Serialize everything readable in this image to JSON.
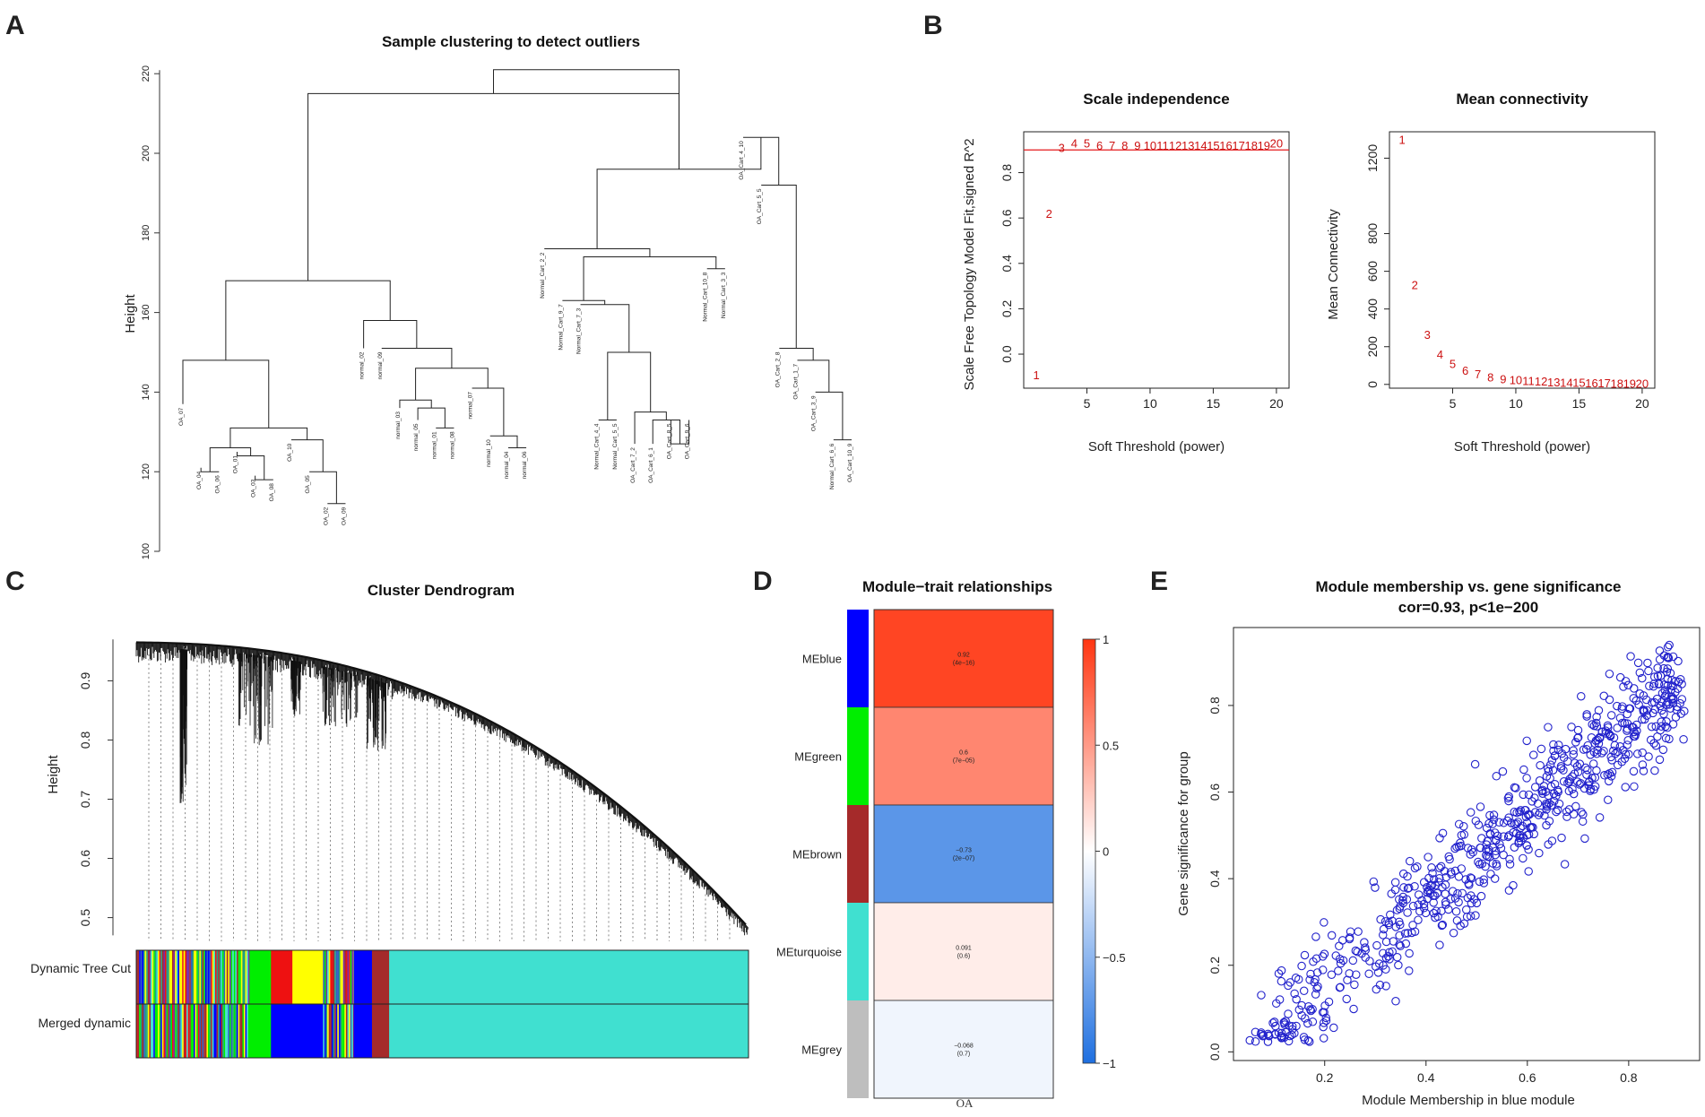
{
  "panels": {
    "A": "A",
    "B": "B",
    "C": "C",
    "D": "D",
    "E": "E"
  },
  "colors": {
    "blue": "#0000ff",
    "green": "#00ee00",
    "brown": "#a52a2a",
    "turquoise": "#40e0d0",
    "grey": "#bebebe",
    "yellow": "#ffff00",
    "red": "#ee1111",
    "purple": "#7b2aa8",
    "threshold": "#e41a1c",
    "points": "#2222cc"
  },
  "chart_data": [
    {
      "id": "A",
      "type": "dendrogram",
      "title": "Sample clustering to detect outliers",
      "ylabel": "Height",
      "ylim": [
        100,
        225
      ],
      "yticks": [
        100,
        120,
        140,
        160,
        180,
        200,
        220
      ],
      "leaves": [
        "OA_07",
        "OA_04",
        "OA_06",
        "OA_01",
        "OA_03",
        "OA_08",
        "OA_10",
        "OA_05",
        "OA_02",
        "OA_09",
        "normal_02",
        "normal_09",
        "normal_03",
        "normal_05",
        "normal_01",
        "normal_08",
        "normal_07",
        "normal_10",
        "normal_04",
        "normal_06",
        "Normal_Cart_2_2",
        "Normal_Cart_9_7",
        "Normal_Cart_7_3",
        "Normal_Cart_4_4",
        "Normal_Cart_5_5",
        "OA_Cart_7_2",
        "OA_Cart_6_1",
        "OA_Cart_8_5",
        "OA_Cart_9_6",
        "Normal_Cart_10_8",
        "Normal_Cart_3_3",
        "OA_Cart_4_10",
        "OA_Cart_5_5",
        "OA_Cart_2_8",
        "OA_Cart_1_7",
        "OA_Cart_3_9",
        "Normal_Cart_6_6",
        "OA_Cart_10_9"
      ],
      "merges": [
        [
          -2,
          -3,
          120
        ],
        [
          -5,
          -6,
          118
        ],
        [
          -4,
          2,
          124
        ],
        [
          1,
          3,
          126
        ],
        [
          -9,
          -10,
          112
        ],
        [
          -8,
          5,
          120
        ],
        [
          -7,
          6,
          128
        ],
        [
          4,
          7,
          131
        ],
        [
          -1,
          8,
          148
        ],
        [
          -15,
          -16,
          131
        ],
        [
          -14,
          10,
          136
        ],
        [
          -13,
          11,
          138
        ],
        [
          -19,
          -20,
          126
        ],
        [
          -18,
          13,
          129
        ],
        [
          -17,
          14,
          141
        ],
        [
          12,
          15,
          146
        ],
        [
          -12,
          16,
          151
        ],
        [
          -11,
          17,
          158
        ],
        [
          9,
          18,
          168
        ],
        [
          -24,
          -25,
          133
        ],
        [
          -28,
          -29,
          127
        ],
        [
          -27,
          21,
          133
        ],
        [
          -26,
          22,
          135
        ],
        [
          20,
          23,
          150
        ],
        [
          -23,
          24,
          162
        ],
        [
          -22,
          25,
          163
        ],
        [
          -30,
          -31,
          171
        ],
        [
          26,
          27,
          174
        ],
        [
          -21,
          28,
          176
        ],
        [
          -37,
          -38,
          128
        ],
        [
          -36,
          30,
          140
        ],
        [
          -35,
          31,
          148
        ],
        [
          -34,
          32,
          151
        ],
        [
          -33,
          33,
          192
        ],
        [
          -32,
          34,
          204
        ],
        [
          29,
          35,
          196
        ],
        [
          19,
          36,
          215
        ],
        [
          37,
          36,
          221
        ]
      ]
    },
    {
      "id": "B1",
      "type": "scatter",
      "title": "Scale independence",
      "xlabel": "Soft Threshold (power)",
      "ylabel": "Scale Free Topology Model Fit,signed R^2",
      "xlim": [
        0,
        21
      ],
      "ylim": [
        -0.15,
        0.98
      ],
      "xticks": [
        5,
        10,
        15,
        20
      ],
      "yticks": [
        0.0,
        0.2,
        0.4,
        0.6,
        0.8
      ],
      "h_line": 0.9,
      "x": [
        1,
        2,
        3,
        4,
        5,
        6,
        7,
        8,
        9,
        10,
        11,
        12,
        13,
        14,
        15,
        16,
        17,
        18,
        19,
        20
      ],
      "y": [
        -0.09,
        0.62,
        0.91,
        0.93,
        0.93,
        0.92,
        0.92,
        0.92,
        0.92,
        0.92,
        0.92,
        0.92,
        0.92,
        0.92,
        0.92,
        0.92,
        0.92,
        0.92,
        0.92,
        0.93
      ]
    },
    {
      "id": "B2",
      "type": "scatter",
      "title": "Mean connectivity",
      "xlabel": "Soft Threshold (power)",
      "ylabel": "Mean Connectivity",
      "xlim": [
        0,
        21
      ],
      "ylim": [
        -20,
        1340
      ],
      "xticks": [
        5,
        10,
        15,
        20
      ],
      "yticks": [
        0,
        200,
        400,
        600,
        800,
        1200
      ],
      "x": [
        1,
        2,
        3,
        4,
        5,
        6,
        7,
        8,
        9,
        10,
        11,
        12,
        13,
        14,
        15,
        16,
        17,
        18,
        19,
        20
      ],
      "y": [
        1300,
        530,
        265,
        160,
        110,
        75,
        55,
        40,
        30,
        25,
        20,
        17,
        14,
        12,
        10,
        9,
        8,
        7,
        6,
        5
      ]
    },
    {
      "id": "C",
      "type": "dendrogram",
      "title": "Cluster Dendrogram",
      "ylabel": "Height",
      "ylim": [
        0.46,
        0.99
      ],
      "yticks": [
        0.5,
        0.6,
        0.7,
        0.8,
        0.9
      ],
      "tracks": [
        {
          "label": "Dynamic Tree Cut",
          "segments": [
            [
              "stripes",
              0.185
            ],
            [
              "green",
              0.035
            ],
            [
              "red",
              0.035
            ],
            [
              "yellow",
              0.05
            ],
            [
              "stripes",
              0.05
            ],
            [
              "blue",
              0.03
            ],
            [
              "brown",
              0.028
            ],
            [
              "turquoise",
              0.587
            ]
          ]
        },
        {
          "label": "Merged dynamic",
          "segments": [
            [
              "stripes",
              0.185
            ],
            [
              "green",
              0.035
            ],
            [
              "blue",
              0.035
            ],
            [
              "blue",
              0.05
            ],
            [
              "stripes",
              0.05
            ],
            [
              "blue",
              0.03
            ],
            [
              "brown",
              0.028
            ],
            [
              "turquoise",
              0.587
            ]
          ]
        }
      ]
    },
    {
      "id": "D",
      "type": "heatmap",
      "title": "Module−trait relationships",
      "columns": [
        "OA"
      ],
      "rows": [
        {
          "module": "MEblue",
          "color": "blue",
          "cor": 0.92,
          "cor_text": "0.92",
          "p_text": "(4e−16)"
        },
        {
          "module": "MEgreen",
          "color": "green",
          "cor": 0.6,
          "cor_text": "0.6",
          "p_text": "(7e−05)"
        },
        {
          "module": "MEbrown",
          "color": "brown",
          "cor": -0.73,
          "cor_text": "−0.73",
          "p_text": "(2e−07)"
        },
        {
          "module": "MEturquoise",
          "color": "turquoise",
          "cor": 0.091,
          "cor_text": "0.091",
          "p_text": "(0.6)"
        },
        {
          "module": "MEgrey",
          "color": "grey",
          "cor": -0.068,
          "cor_text": "−0.068",
          "p_text": "(0.7)"
        }
      ],
      "scale_ticks": [
        1,
        0.5,
        0,
        -0.5,
        -1
      ],
      "scale_labels": [
        "1",
        "0.5",
        "0",
        "−0.5",
        "−1"
      ]
    },
    {
      "id": "E",
      "type": "scatter",
      "title": "Module membership vs. gene significance",
      "subtitle": "cor=0.93, p<1e−200",
      "xlabel": "Module Membership in blue module",
      "ylabel": "Gene significance for  group",
      "xlim": [
        0.02,
        0.94
      ],
      "ylim": [
        -0.02,
        0.98
      ],
      "xticks": [
        0.2,
        0.4,
        0.6,
        0.8
      ],
      "yticks": [
        0.0,
        0.2,
        0.4,
        0.6,
        0.8
      ],
      "n_points": 700,
      "slope": 1.0,
      "intercept": -0.05,
      "noise_sd": 0.065
    }
  ]
}
